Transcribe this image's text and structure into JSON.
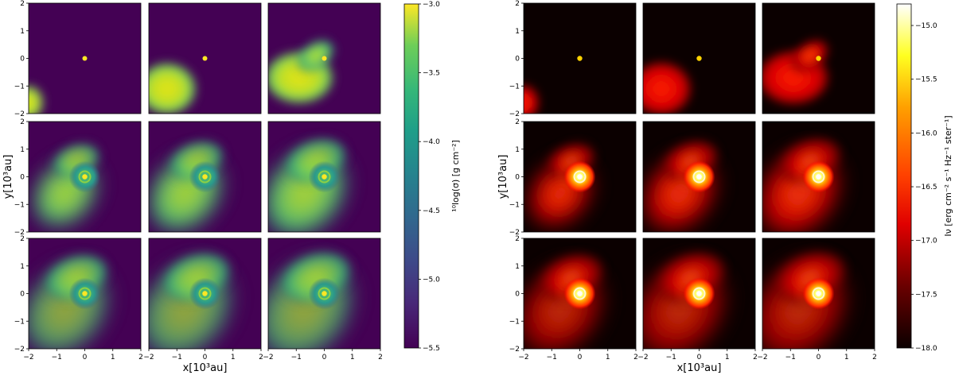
{
  "chart_data": [
    {
      "type": "heatmap",
      "quantity": "surface density",
      "colormap": "viridis",
      "panels_grid": [
        3,
        3
      ],
      "xlabel": "x[10³au]",
      "ylabel": "y[10³au]",
      "xlim": [
        -2,
        2
      ],
      "ylim": [
        -2,
        2
      ],
      "x_ticks": [
        "−2",
        "−1",
        "0",
        "1",
        "2"
      ],
      "y_ticks": [
        "2",
        "1",
        "0",
        "−1",
        "−2"
      ],
      "colorbar": {
        "label": "¹⁰log(σ) [g cm⁻²]",
        "range": [
          -5.5,
          -3.0
        ],
        "ticks": [
          "−3.0",
          "−3.5",
          "−4.0",
          "−4.5",
          "−5.0",
          "−5.5"
        ]
      }
    },
    {
      "type": "heatmap",
      "quantity": "intensity",
      "colormap": "hot",
      "panels_grid": [
        3,
        3
      ],
      "xlabel": "x[10³au]",
      "ylabel": "y[10³au]",
      "xlim": [
        -2,
        2
      ],
      "ylim": [
        -2,
        2
      ],
      "x_ticks": [
        "−2",
        "−1",
        "0",
        "1",
        "2"
      ],
      "y_ticks": [
        "2",
        "1",
        "0",
        "−1",
        "−2"
      ],
      "colorbar": {
        "label": "Iν [erg cm⁻² s⁻¹ Hz⁻¹ ster⁻¹]",
        "range": [
          -18.0,
          -14.8
        ],
        "ticks": [
          "−15.0",
          "−15.5",
          "−16.0",
          "−16.5",
          "−17.0",
          "−17.5",
          "−18.0"
        ]
      }
    }
  ]
}
